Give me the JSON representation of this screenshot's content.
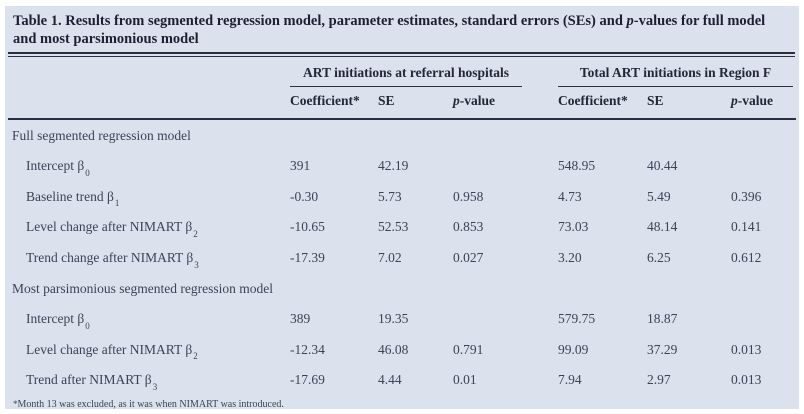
{
  "title": {
    "before_p": "Table 1. Results from segmented regression model, parameter estimates, standard errors (SEs) and ",
    "p_italic": "p",
    "after_p": "-values for full model and most parsimonious model"
  },
  "header": {
    "group1": "ART initiations at referral hospitals",
    "group2": "Total ART initiations in Region F",
    "coefficient": "Coefficient*",
    "se": "SE",
    "p_italic": "p",
    "p_rest": "-value"
  },
  "sections": [
    {
      "name": "Full segmented regression model",
      "rows": [
        {
          "label": "Intercept β",
          "sub": "0",
          "h_coef": "391",
          "h_se": "42.19",
          "h_p": "",
          "t_coef": "548.95",
          "t_se": "40.44",
          "t_p": ""
        },
        {
          "label": "Baseline trend β",
          "sub": "1",
          "h_coef": "-0.30",
          "h_se": "5.73",
          "h_p": "0.958",
          "t_coef": "4.73",
          "t_se": "5.49",
          "t_p": "0.396"
        },
        {
          "label": "Level change after NIMART β",
          "sub": "2",
          "h_coef": "-10.65",
          "h_se": "52.53",
          "h_p": "0.853",
          "t_coef": "73.03",
          "t_se": "48.14",
          "t_p": "0.141"
        },
        {
          "label": "Trend change after NIMART β",
          "sub": "3",
          "h_coef": "-17.39",
          "h_se": "7.02",
          "h_p": "0.027",
          "t_coef": "3.20",
          "t_se": "6.25",
          "t_p": "0.612"
        }
      ]
    },
    {
      "name": "Most parsimonious segmented regression model",
      "rows": [
        {
          "label": "Intercept β",
          "sub": "0",
          "h_coef": "389",
          "h_se": "19.35",
          "h_p": "",
          "t_coef": "579.75",
          "t_se": "18.87",
          "t_p": ""
        },
        {
          "label": "Level change after NIMART β",
          "sub": "2",
          "h_coef": "-12.34",
          "h_se": "46.08",
          "h_p": "0.791",
          "t_coef": "99.09",
          "t_se": "37.29",
          "t_p": "0.013"
        },
        {
          "label": "Trend after NIMART β",
          "sub": "3",
          "h_coef": "-17.69",
          "h_se": "4.44",
          "h_p": "0.01",
          "t_coef": "7.94",
          "t_se": "2.97",
          "t_p": "0.013"
        }
      ]
    }
  ],
  "footnote": {
    "star": "*",
    "text": "Month 13 was excluded, as it was when NIMART was introduced."
  },
  "colors": {
    "panel_bg": "#dce1ee",
    "title_text": "#1c2032",
    "body_text": "#3d4257",
    "rule": "#2b2f45"
  }
}
